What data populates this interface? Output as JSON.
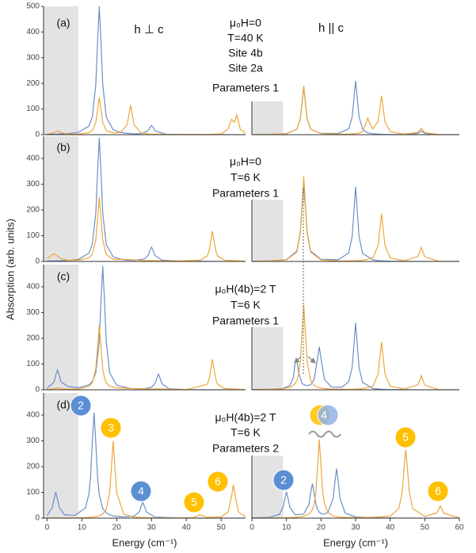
{
  "ylabel": "Absorption (arb. units)",
  "chart_data": [
    {
      "type": "line",
      "label": "(a)",
      "title": "h ⊥ c",
      "xlim": [
        -1,
        57
      ],
      "ylim": [
        0,
        500
      ],
      "yticks": [
        0,
        100,
        200,
        300,
        400,
        500
      ],
      "annotations": [
        {
          "text": "μ₀H=0"
        },
        {
          "text": "T=40 K"
        },
        {
          "text": "Site 4b",
          "color": "#4f7fd0"
        },
        {
          "text": "Site 2a",
          "color": "#f0b040"
        },
        {
          "text": "Parameters 1"
        }
      ],
      "x": [
        0,
        2,
        3,
        4,
        6,
        9,
        12,
        13,
        14,
        14.5,
        15,
        15.5,
        16,
        17,
        19,
        21,
        23,
        23.5,
        24,
        24.5,
        25,
        27,
        29,
        29.5,
        30,
        30.5,
        31,
        34,
        40,
        46,
        50,
        52,
        53,
        53.8,
        54.5,
        55.5,
        57
      ],
      "series": [
        {
          "color": "#6b8fc9",
          "values": [
            2,
            2,
            2,
            3,
            4,
            9,
            33,
            69,
            195,
            360,
            500,
            360,
            195,
            69,
            19,
            9,
            5,
            5,
            4,
            4,
            3,
            4,
            15,
            27,
            36,
            27,
            15,
            2,
            1,
            1,
            1,
            0,
            0,
            0,
            0,
            0,
            0
          ]
        },
        {
          "color": "#eea63a",
          "values": [
            2,
            8,
            15,
            8,
            2,
            2,
            8,
            16,
            48,
            96,
            145,
            96,
            48,
            16,
            7,
            8,
            39,
            77,
            116,
            77,
            39,
            7,
            3,
            2,
            2,
            2,
            2,
            1,
            1,
            1,
            3,
            22,
            60,
            48,
            77,
            21,
            5
          ]
        }
      ]
    },
    {
      "type": "line",
      "title": "h || c",
      "xlim": [
        0,
        60
      ],
      "ylim": [
        0,
        500
      ],
      "x": [
        0,
        5,
        10,
        13,
        14,
        14.5,
        15,
        15.5,
        16,
        17,
        20,
        25,
        28,
        29,
        29.5,
        30,
        30.5,
        31,
        32,
        33,
        33.5,
        34,
        35,
        36.5,
        37,
        37.5,
        38,
        38.5,
        40,
        44,
        48,
        49,
        50,
        54,
        60
      ],
      "series": [
        {
          "color": "#6b8fc9",
          "values": [
            0,
            1,
            4,
            21,
            61,
            122,
            185,
            122,
            61,
            21,
            5,
            5,
            23,
            69,
            139,
            210,
            139,
            69,
            23,
            11,
            8,
            6,
            4,
            2,
            2,
            2,
            1,
            1,
            1,
            1,
            5,
            15,
            5,
            0,
            0
          ]
        },
        {
          "color": "#eea63a",
          "values": [
            0,
            1,
            4,
            21,
            63,
            126,
            190,
            126,
            63,
            21,
            4,
            2,
            2,
            3,
            3,
            4,
            5,
            6,
            13,
            44,
            65,
            46,
            22,
            52,
            101,
            152,
            101,
            50,
            12,
            2,
            9,
            25,
            8,
            1,
            0
          ]
        }
      ]
    },
    {
      "type": "line",
      "label": "(b)",
      "xlim": [
        -1,
        57
      ],
      "ylim": [
        0,
        486
      ],
      "yticks": [
        0,
        100,
        200,
        300,
        400
      ],
      "annotations": [
        {
          "text": "μ₀H=0"
        },
        {
          "text": "T=6 K"
        },
        {
          "text": "Parameters 1"
        }
      ],
      "x": [
        0,
        2,
        4,
        6,
        9,
        12,
        13,
        14,
        14.5,
        15,
        15.5,
        16,
        17,
        19,
        22,
        25,
        28,
        29,
        29.5,
        30,
        30.5,
        31,
        33,
        38,
        44,
        46,
        46.5,
        47,
        47.5,
        48,
        48.5,
        49,
        51,
        57
      ],
      "series": [
        {
          "color": "#6b8fc9",
          "values": [
            2,
            2,
            3,
            4,
            8,
            32,
            66,
            187,
            346,
            480,
            346,
            187,
            66,
            18,
            6,
            4,
            10,
            23,
            41,
            56,
            41,
            23,
            5,
            1,
            1,
            1,
            0,
            0,
            0,
            0,
            0,
            0,
            0,
            0
          ]
        },
        {
          "color": "#eea63a",
          "values": [
            11,
            30,
            11,
            5,
            5,
            14,
            27,
            82,
            166,
            250,
            166,
            82,
            27,
            8,
            8,
            6,
            3,
            3,
            3,
            3,
            3,
            3,
            2,
            2,
            5,
            21,
            39,
            78,
            118,
            78,
            39,
            21,
            5,
            1
          ]
        }
      ]
    },
    {
      "type": "line",
      "xlim": [
        0,
        60
      ],
      "ylim": [
        0,
        486
      ],
      "x": [
        0,
        5,
        10,
        13,
        14,
        14.5,
        15,
        15.5,
        16,
        17,
        20,
        25,
        28,
        29,
        29.5,
        30,
        30.5,
        31,
        32,
        35,
        36.5,
        37,
        37.5,
        38,
        38.5,
        40,
        44,
        48,
        48.5,
        49,
        49.5,
        50,
        54,
        60
      ],
      "series": [
        {
          "color": "#6b8fc9",
          "values": [
            1,
            2,
            7,
            40,
            113,
            209,
            290,
            209,
            113,
            40,
            8,
            7,
            33,
            96,
            191,
            290,
            191,
            96,
            32,
            6,
            3,
            3,
            2,
            2,
            2,
            1,
            1,
            0,
            0,
            0,
            0,
            0,
            0,
            0
          ]
        },
        {
          "color": "#eea63a",
          "values": [
            0,
            2,
            6,
            36,
            109,
            218,
            330,
            218,
            109,
            36,
            6,
            2,
            2,
            2,
            2,
            3,
            3,
            3,
            4,
            14,
            61,
            122,
            185,
            122,
            61,
            14,
            3,
            19,
            36,
            55,
            36,
            18,
            1,
            0
          ]
        }
      ]
    },
    {
      "type": "line",
      "label": "(c)",
      "xlim": [
        -1,
        57
      ],
      "ylim": [
        0,
        486
      ],
      "yticks": [
        0,
        100,
        200,
        300,
        400
      ],
      "annotations": [
        {
          "text": "μ₀H(4b)=2 T"
        },
        {
          "text": "T=6 K"
        },
        {
          "text": "Parameters 1"
        }
      ],
      "x": [
        0,
        2,
        2.5,
        3,
        3.5,
        4,
        6,
        9,
        12,
        13,
        14,
        15,
        15.5,
        16,
        16.5,
        17,
        18,
        20,
        24,
        28,
        30,
        31,
        31.5,
        32,
        32.5,
        33,
        35,
        40,
        46,
        46.5,
        47,
        47.5,
        48,
        48.5,
        49,
        51,
        57
      ],
      "series": [
        {
          "color": "#6b8fc9",
          "values": [
            6,
            30,
            56,
            77,
            56,
            31,
            13,
            8,
            19,
            32,
            66,
            187,
            346,
            480,
            346,
            187,
            66,
            18,
            5,
            4,
            10,
            24,
            43,
            61,
            43,
            24,
            4,
            1,
            0,
            0,
            0,
            0,
            0,
            0,
            0,
            0,
            0
          ]
        },
        {
          "color": "#eea63a",
          "values": [
            1,
            4,
            6,
            8,
            6,
            4,
            2,
            3,
            13,
            27,
            82,
            250,
            166,
            82,
            45,
            27,
            13,
            8,
            5,
            3,
            3,
            3,
            3,
            3,
            3,
            3,
            2,
            1,
            21,
            39,
            78,
            118,
            78,
            39,
            21,
            5,
            1
          ]
        }
      ]
    },
    {
      "type": "line",
      "xlim": [
        0,
        60
      ],
      "ylim": [
        0,
        486
      ],
      "x": [
        0,
        5,
        9,
        11,
        12,
        12.5,
        13,
        13.5,
        14,
        14.5,
        15,
        15.5,
        16,
        17,
        18,
        19,
        19.5,
        20,
        21,
        23,
        26,
        28,
        29,
        29.5,
        30,
        30.5,
        31,
        32,
        35,
        36.5,
        37,
        37.5,
        38,
        38.5,
        40,
        44,
        48,
        48.5,
        49,
        49.5,
        50,
        54,
        60
      ],
      "series": [
        {
          "color": "#6b8fc9",
          "values": [
            1,
            2,
            5,
            17,
            47,
            103,
            117,
            68,
            48,
            24,
            21,
            17,
            16,
            20,
            40,
            121,
            167,
            121,
            40,
            11,
            10,
            31,
            87,
            172,
            260,
            172,
            86,
            29,
            5,
            3,
            3,
            2,
            2,
            2,
            1,
            1,
            0,
            0,
            0,
            0,
            0,
            0,
            0
          ]
        },
        {
          "color": "#eea63a",
          "values": [
            0,
            2,
            4,
            10,
            17,
            24,
            36,
            59,
            109,
            218,
            330,
            218,
            109,
            36,
            17,
            10,
            8,
            7,
            5,
            3,
            2,
            2,
            2,
            2,
            3,
            3,
            3,
            4,
            14,
            61,
            122,
            185,
            122,
            61,
            14,
            3,
            19,
            36,
            55,
            36,
            18,
            1,
            0
          ]
        }
      ]
    },
    {
      "type": "line",
      "label": "(d)",
      "xlabel": "Energy (cm⁻¹)",
      "xlim": [
        -1,
        57
      ],
      "ylim": [
        0,
        486
      ],
      "xticks": [
        0,
        10,
        20,
        30,
        40,
        50
      ],
      "yticks": [
        0,
        100,
        200,
        300,
        400
      ],
      "annotations": [
        {
          "text": "μ₀H(4b)=2 T"
        },
        {
          "text": "T=6 K"
        },
        {
          "text": "Parameters 2"
        }
      ],
      "markers": [
        {
          "text": "2",
          "color": "#5b8fd4"
        },
        {
          "text": "3",
          "color": "#ffc000"
        },
        {
          "text": "4",
          "color": "#5b8fd4"
        },
        {
          "text": "5",
          "color": "#ffc000"
        },
        {
          "text": "6",
          "color": "#ffc000"
        }
      ],
      "x": [
        0,
        1.5,
        2,
        2.5,
        3,
        3.5,
        5,
        8,
        11,
        12,
        12.5,
        13,
        13.5,
        14,
        14.5,
        15,
        16,
        17,
        18,
        18.5,
        19,
        19.5,
        20,
        22,
        25,
        26.5,
        27,
        27.5,
        28,
        28.5,
        31,
        38,
        42,
        44,
        46,
        50,
        52,
        53,
        53.5,
        54,
        55,
        57
      ],
      "series": [
        {
          "color": "#6b8fc9",
          "values": [
            10,
            41,
            74,
            102,
            74,
            42,
            13,
            11,
            39,
            92,
            160,
            295,
            410,
            295,
            160,
            91,
            38,
            21,
            13,
            11,
            9,
            8,
            7,
            5,
            8,
            25,
            45,
            61,
            45,
            25,
            4,
            1,
            0,
            0,
            0,
            0,
            0,
            0,
            0,
            0,
            0,
            0
          ]
        },
        {
          "color": "#eea63a",
          "values": [
            1,
            1,
            1,
            1,
            1,
            1,
            1,
            1,
            2,
            3,
            4,
            4,
            5,
            6,
            7,
            9,
            16,
            33,
            99,
            198,
            300,
            198,
            99,
            16,
            4,
            3,
            2,
            2,
            2,
            2,
            1,
            1,
            2,
            13,
            3,
            5,
            24,
            86,
            130,
            86,
            24,
            5
          ]
        }
      ]
    },
    {
      "type": "line",
      "xlabel": "Energy (cm⁻¹)",
      "xlim": [
        0,
        60
      ],
      "ylim": [
        0,
        486
      ],
      "xticks": [
        0,
        10,
        20,
        30,
        40,
        50,
        60
      ],
      "markers": [
        {
          "text": "2",
          "color": "#5b8fd4"
        },
        {
          "text": "4",
          "color": [
            "#ffc000",
            "#8fb3e3"
          ]
        },
        {
          "text": "5",
          "color": "#ffc000"
        },
        {
          "text": "6",
          "color": "#ffc000"
        }
      ],
      "x": [
        0,
        5,
        8,
        9,
        9.5,
        10,
        10.5,
        11,
        12.5,
        15,
        16.5,
        17,
        17.5,
        18,
        18.5,
        19,
        19.5,
        20,
        20.5,
        21,
        22,
        23.5,
        24,
        24.5,
        25,
        25.5,
        27,
        30,
        35,
        40,
        42.5,
        43.5,
        44,
        44.5,
        45,
        45.5,
        46.5,
        50,
        53.5,
        54,
        54.5,
        55,
        55.5,
        60
      ],
      "series": [
        {
          "color": "#6b8fc9",
          "values": [
            1,
            3,
            15,
            41,
            73,
            102,
            74,
            42,
            13,
            16,
            54,
            97,
            134,
            98,
            55,
            34,
            23,
            18,
            16,
            16,
            22,
            76,
            139,
            192,
            139,
            76,
            19,
            5,
            1,
            1,
            0,
            0,
            0,
            0,
            0,
            0,
            0,
            0,
            0,
            0,
            0,
            0,
            0,
            0
          ]
        },
        {
          "color": "#eea63a",
          "values": [
            0,
            1,
            1,
            1,
            2,
            2,
            2,
            2,
            3,
            7,
            16,
            22,
            34,
            55,
            101,
            201,
            305,
            201,
            101,
            55,
            22,
            9,
            7,
            6,
            5,
            4,
            3,
            2,
            3,
            8,
            37,
            103,
            191,
            265,
            191,
            103,
            37,
            7,
            20,
            34,
            47,
            34,
            19,
            2
          ]
        }
      ]
    }
  ]
}
